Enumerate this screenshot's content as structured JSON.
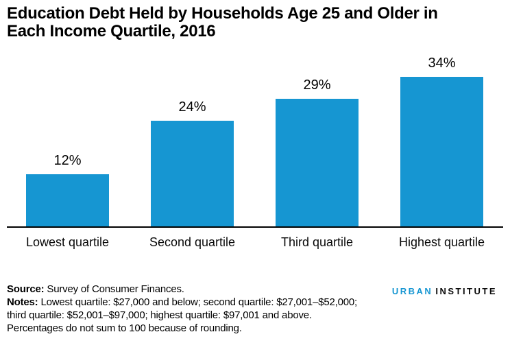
{
  "title_line1": "Education Debt Held by Households Age 25 and Older in",
  "title_line2": "Each Income Quartile, 2016",
  "colors": {
    "bar": "#1696d2",
    "axis": "#000000",
    "logo_accent": "#1696d2"
  },
  "chart_data": {
    "type": "bar",
    "categories": [
      "Lowest quartile",
      "Second quartile",
      "Third quartile",
      "Highest quartile"
    ],
    "values": [
      12,
      24,
      29,
      34
    ],
    "value_labels": [
      "12%",
      "24%",
      "29%",
      "34%"
    ],
    "title": "Education Debt Held by Households Age 25 and Older in Each Income Quartile, 2016",
    "xlabel": "",
    "ylabel": "",
    "unit": "percent",
    "ylim": [
      0,
      40
    ],
    "grid": false,
    "legend": "none",
    "bar_color": "#1696d2"
  },
  "footer": {
    "source_label": "Source:",
    "source_text": " Survey of Consumer Finances.",
    "notes_label": "Notes:",
    "notes_line1": " Lowest quartile: $27,000 and below; second quartile: $27,001–$52,000;",
    "notes_line2": "third quartile: $52,001–$97,000; highest quartile: $97,001 and above.",
    "rounding_note": "Percentages do not sum to 100 because of rounding."
  },
  "logo": {
    "part1": "URBAN",
    "part2": "INSTITUTE"
  }
}
